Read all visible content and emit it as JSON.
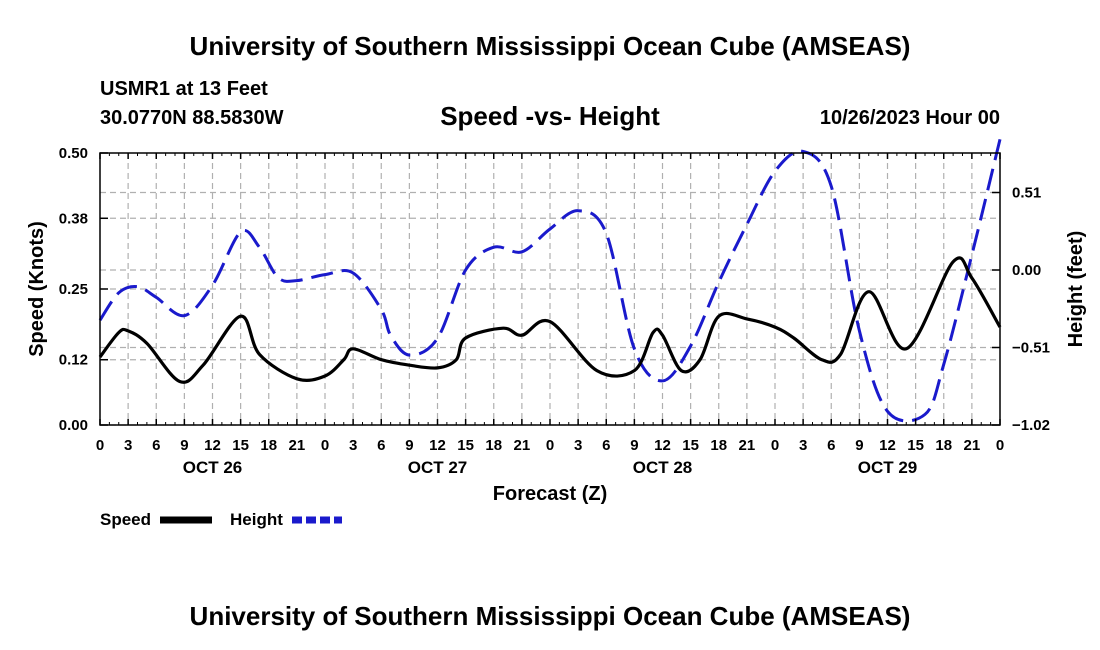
{
  "header": {
    "title": "University of Southern Mississippi Ocean Cube (AMSEAS)",
    "station": "USMR1 at 13 Feet",
    "coords": "30.0770N  88.5830W",
    "chart_title": "Speed -vs- Height",
    "datetime": "10/26/2023 Hour 00"
  },
  "footer": {
    "title": "University of Southern Mississippi Ocean Cube (AMSEAS)"
  },
  "colors": {
    "speed": "#000000",
    "height": "#1a1acc",
    "grid": "#b0b0b0"
  },
  "chart_data": {
    "type": "line",
    "title": "Speed -vs- Height",
    "xlabel": "Forecast (Z)",
    "ylabel": "Speed (Knots)",
    "y2label": "Height (feet)",
    "xlim": [
      0,
      96
    ],
    "ylim": [
      0,
      0.5
    ],
    "y2lim": [
      -1.02,
      0.77
    ],
    "x_ticks": [
      0,
      3,
      6,
      9,
      12,
      15,
      18,
      21,
      24,
      27,
      30,
      33,
      36,
      39,
      42,
      45,
      48,
      51,
      54,
      57,
      60,
      63,
      66,
      69,
      72,
      75,
      78,
      81,
      84,
      87,
      90,
      93,
      96
    ],
    "x_tick_labels": [
      "0",
      "3",
      "6",
      "9",
      "12",
      "15",
      "18",
      "21",
      "0",
      "3",
      "6",
      "9",
      "12",
      "15",
      "18",
      "21",
      "0",
      "3",
      "6",
      "9",
      "12",
      "15",
      "18",
      "21",
      "0",
      "3",
      "6",
      "9",
      "12",
      "15",
      "18",
      "21",
      "0"
    ],
    "y_ticks": [
      0.0,
      0.12,
      0.25,
      0.38,
      0.5
    ],
    "y_tick_labels": [
      "0.00",
      "0.12",
      "0.25",
      "0.38",
      "0.50"
    ],
    "y2_ticks": [
      -1.02,
      -0.51,
      0.0,
      0.51
    ],
    "y2_tick_labels": [
      "−1.02",
      "−0.51",
      "0.00",
      "0.51"
    ],
    "date_labels": [
      {
        "x": 12,
        "label": "OCT 26"
      },
      {
        "x": 36,
        "label": "OCT 27"
      },
      {
        "x": 60,
        "label": "OCT 28"
      },
      {
        "x": 84,
        "label": "OCT 29"
      }
    ],
    "grid": true,
    "legend_position": "bottom-left",
    "series": [
      {
        "name": "Speed",
        "axis": "left",
        "style": "solid",
        "x": [
          0,
          2,
          3,
          5,
          8.5,
          11,
          15,
          17,
          21,
          24,
          26,
          27,
          30,
          33,
          36,
          38,
          39,
          43,
          45,
          48,
          53,
          57,
          59,
          60,
          62,
          64,
          66,
          69,
          72,
          74,
          77,
          79,
          82,
          86,
          91,
          93,
          96
        ],
        "y": [
          0.125,
          0.17,
          0.173,
          0.15,
          0.08,
          0.11,
          0.2,
          0.13,
          0.085,
          0.09,
          0.12,
          0.14,
          0.12,
          0.11,
          0.105,
          0.12,
          0.16,
          0.178,
          0.165,
          0.19,
          0.1,
          0.1,
          0.17,
          0.165,
          0.1,
          0.12,
          0.2,
          0.195,
          0.18,
          0.16,
          0.12,
          0.13,
          0.245,
          0.14,
          0.3,
          0.27,
          0.18
        ]
      },
      {
        "name": "Height",
        "axis": "right",
        "style": "dashed",
        "x": [
          0,
          2,
          4,
          6,
          9,
          12,
          15,
          17,
          19,
          21,
          24,
          27,
          30,
          31,
          33,
          36,
          39,
          42,
          45,
          48,
          51,
          54,
          57,
          60,
          63,
          66,
          69,
          72,
          75,
          78,
          81,
          84,
          88,
          90,
          93,
          96
        ],
        "y": [
          -0.33,
          -0.15,
          -0.11,
          -0.18,
          -0.3,
          -0.1,
          0.25,
          0.15,
          -0.05,
          -0.07,
          -0.03,
          -0.02,
          -0.26,
          -0.43,
          -0.56,
          -0.45,
          0.0,
          0.15,
          0.12,
          0.27,
          0.39,
          0.24,
          -0.52,
          -0.73,
          -0.5,
          -0.08,
          0.3,
          0.65,
          0.78,
          0.55,
          -0.4,
          -0.93,
          -0.95,
          -0.62,
          0.1,
          0.86
        ]
      }
    ]
  }
}
